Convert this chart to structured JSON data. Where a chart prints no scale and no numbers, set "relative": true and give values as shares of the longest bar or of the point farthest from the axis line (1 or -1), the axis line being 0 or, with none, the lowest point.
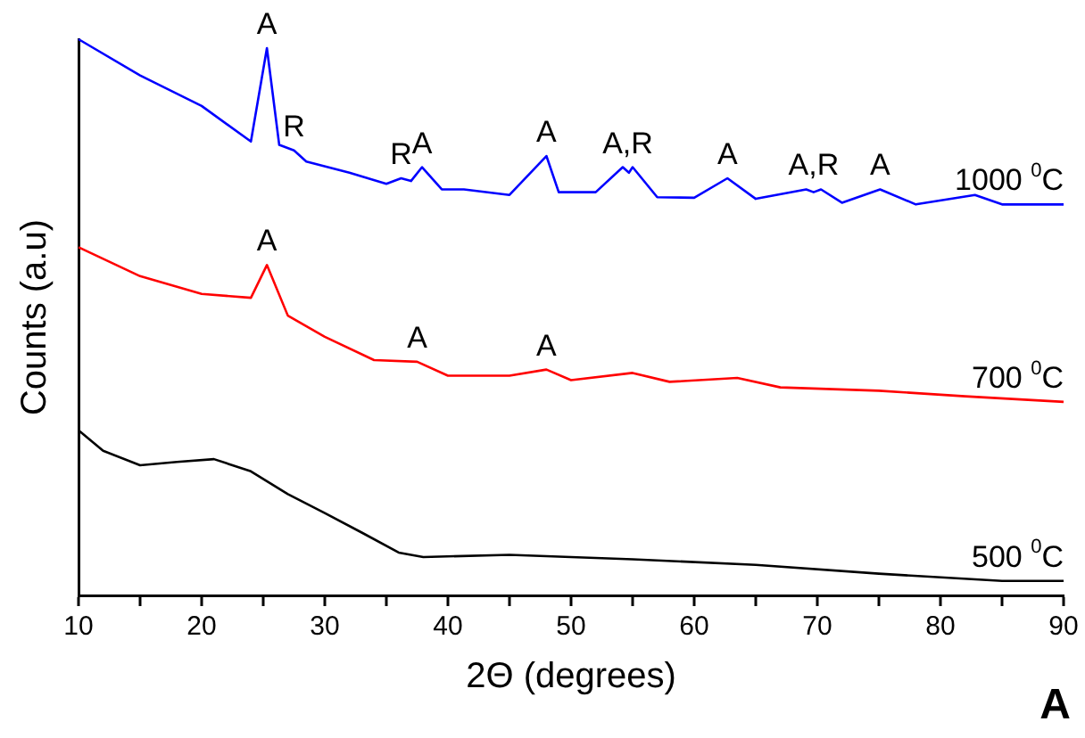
{
  "chart_data": {
    "type": "line",
    "xlabel": "2Θ (degrees)",
    "ylabel": "Counts (a.u)",
    "relative": true,
    "xlim": [
      10,
      90
    ],
    "xticks": [
      10,
      {
        "value": 15,
        "label": null
      },
      20,
      {
        "value": 25,
        "label": null
      },
      30,
      {
        "value": 35,
        "label": null
      },
      40,
      {
        "value": 45,
        "label": null
      },
      50,
      {
        "value": 55,
        "label": null
      },
      60,
      {
        "value": 65,
        "label": null
      },
      70,
      {
        "value": 75,
        "label": null
      },
      80,
      {
        "value": 85,
        "label": null
      },
      90
    ],
    "grid": false,
    "legend": false,
    "marker": "none",
    "line_style": "solid",
    "series": [
      {
        "name": "1000 $^{0}$C",
        "color": "#0000ff",
        "x": [
          10,
          15,
          20,
          24,
          25.3,
          26.3,
          27.5,
          28.5,
          32,
          35,
          36.2,
          37,
          37.9,
          39.5,
          41.3,
          45,
          48,
          49,
          52,
          54.2,
          54.7,
          55,
          57,
          60,
          62.7,
          65,
          69.1,
          69.7,
          70.3,
          72,
          75.1,
          78,
          82.8,
          85,
          90
        ],
        "values": [
          1.0,
          0.935,
          0.88,
          0.816,
          0.984,
          0.81,
          0.8,
          0.78,
          0.76,
          0.74,
          0.75,
          0.745,
          0.77,
          0.73,
          0.73,
          0.72,
          0.79,
          0.725,
          0.725,
          0.77,
          0.76,
          0.77,
          0.716,
          0.715,
          0.75,
          0.713,
          0.73,
          0.725,
          0.73,
          0.706,
          0.73,
          0.703,
          0.72,
          0.703,
          0.703
        ]
      },
      {
        "name": "700 $^{0}$C",
        "color": "#ff0000",
        "x": [
          10,
          15,
          20,
          24,
          25.3,
          27,
          30,
          34,
          37.5,
          40,
          45,
          48,
          50,
          55,
          58,
          63.5,
          67,
          75,
          82,
          90
        ],
        "values": [
          0.626,
          0.574,
          0.542,
          0.535,
          0.594,
          0.503,
          0.465,
          0.423,
          0.42,
          0.395,
          0.395,
          0.406,
          0.387,
          0.4,
          0.384,
          0.391,
          0.374,
          0.368,
          0.358,
          0.348
        ]
      },
      {
        "name": "500 $^{0}$C",
        "color": "#000000",
        "x": [
          10,
          12,
          15,
          18,
          21,
          24,
          27,
          30,
          33,
          36,
          38,
          45,
          55,
          65,
          75,
          85,
          90
        ],
        "values": [
          0.297,
          0.26,
          0.234,
          0.24,
          0.245,
          0.223,
          0.182,
          0.148,
          0.113,
          0.077,
          0.069,
          0.073,
          0.065,
          0.055,
          0.039,
          0.026,
          0.026
        ]
      }
    ],
    "annotations": [
      {
        "text": "A",
        "x": 25.3,
        "y": 0.984
      },
      {
        "text": "R",
        "x": 27.5,
        "y": 0.8
      },
      {
        "text": "R",
        "x": 36.2,
        "y": 0.75
      },
      {
        "text": "A",
        "x": 37.9,
        "y": 0.77
      },
      {
        "text": "A",
        "x": 48,
        "y": 0.79
      },
      {
        "text": "A,R",
        "x": 54.6,
        "y": 0.77
      },
      {
        "text": "A",
        "x": 62.7,
        "y": 0.75
      },
      {
        "text": "A,R",
        "x": 69.7,
        "y": 0.73
      },
      {
        "text": "A",
        "x": 75.1,
        "y": 0.73
      },
      {
        "text": "A",
        "x": 25.3,
        "y": 0.594
      },
      {
        "text": "A",
        "x": 37.5,
        "y": 0.42
      },
      {
        "text": "A",
        "x": 48,
        "y": 0.406
      },
      "A"
    ]
  }
}
